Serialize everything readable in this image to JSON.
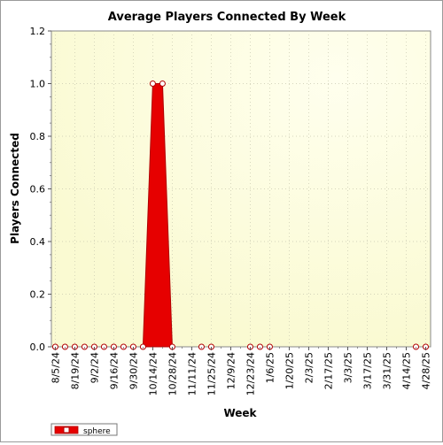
{
  "chart_data": {
    "type": "area",
    "title": "Average Players Connected By Week",
    "xlabel": "Week",
    "ylabel": "Players Connected",
    "ylim": [
      0,
      1.2
    ],
    "y_ticks": [
      "0.0",
      "0.2",
      "0.4",
      "0.6",
      "0.8",
      "1.0",
      "1.2"
    ],
    "x_tick_labels": [
      "8/5/24",
      "8/19/24",
      "9/2/24",
      "9/16/24",
      "9/30/24",
      "10/14/24",
      "10/28/24",
      "11/11/24",
      "11/25/24",
      "12/9/24",
      "12/23/24",
      "1/6/25",
      "1/20/25",
      "2/3/25",
      "2/17/25",
      "3/3/25",
      "3/17/25",
      "3/31/25",
      "4/14/25",
      "4/28/25"
    ],
    "grid": true,
    "legend_position": "bottom-left",
    "colors": {
      "series": "#e60000",
      "outline": "#b00000",
      "marker_fill": "#ffffff",
      "plot_bg_center": "#ffffe6",
      "plot_bg_edge": "#fafad2"
    },
    "series": [
      {
        "name": "sphere",
        "points": [
          {
            "x": "8/5/24",
            "y": 0
          },
          {
            "x": "8/12/24",
            "y": 0
          },
          {
            "x": "8/19/24",
            "y": 0
          },
          {
            "x": "8/26/24",
            "y": 0
          },
          {
            "x": "9/2/24",
            "y": 0
          },
          {
            "x": "9/9/24",
            "y": 0
          },
          {
            "x": "9/16/24",
            "y": 0
          },
          {
            "x": "9/23/24",
            "y": 0
          },
          {
            "x": "9/30/24",
            "y": 0
          },
          {
            "x": "10/7/24",
            "y": 0
          },
          {
            "x": "10/14/24",
            "y": 1.0
          },
          {
            "x": "10/21/24",
            "y": 1.0
          },
          {
            "x": "10/28/24",
            "y": 0
          },
          {
            "x": "11/18/24",
            "y": 0
          },
          {
            "x": "11/25/24",
            "y": 0
          },
          {
            "x": "12/23/24",
            "y": 0
          },
          {
            "x": "12/30/24",
            "y": 0
          },
          {
            "x": "1/6/25",
            "y": 0
          },
          {
            "x": "4/21/25",
            "y": 0
          },
          {
            "x": "4/28/25",
            "y": 0
          }
        ]
      }
    ]
  }
}
